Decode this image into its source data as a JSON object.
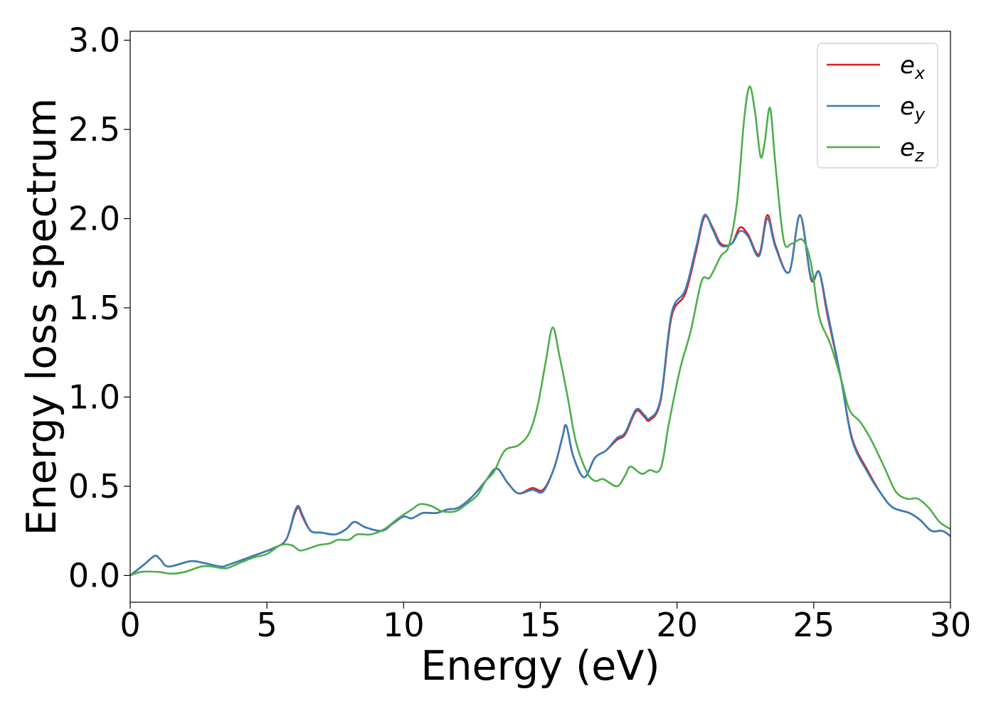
{
  "chart_data": {
    "type": "line",
    "xlabel": "Energy (eV)",
    "ylabel": "Energy loss spectrum",
    "xlim": [
      0,
      30
    ],
    "ylim": [
      -0.15,
      3.05
    ],
    "xticks": [
      0,
      5,
      10,
      15,
      20,
      25,
      30
    ],
    "xtick_labels": [
      "0",
      "5",
      "10",
      "15",
      "20",
      "25",
      "30"
    ],
    "yticks": [
      0.0,
      0.5,
      1.0,
      1.5,
      2.0,
      2.5,
      3.0
    ],
    "ytick_labels": [
      "0.0",
      "0.5",
      "1.0",
      "1.5",
      "2.0",
      "2.5",
      "3.0"
    ],
    "grid": false,
    "legend_position": "top-right",
    "series": [
      {
        "name": "e_x",
        "label_base": "e",
        "label_sub": "x",
        "color": "#e41a1c",
        "points": [
          [
            0,
            0.0
          ],
          [
            0.5,
            0.06
          ],
          [
            0.9,
            0.11
          ],
          [
            1.1,
            0.09
          ],
          [
            1.4,
            0.05
          ],
          [
            2.2,
            0.08
          ],
          [
            2.7,
            0.07
          ],
          [
            3.3,
            0.05
          ],
          [
            3.6,
            0.06
          ],
          [
            4.5,
            0.11
          ],
          [
            5.2,
            0.15
          ],
          [
            5.7,
            0.2
          ],
          [
            6.0,
            0.34
          ],
          [
            6.15,
            0.38
          ],
          [
            6.3,
            0.33
          ],
          [
            6.6,
            0.25
          ],
          [
            7.0,
            0.24
          ],
          [
            7.5,
            0.23
          ],
          [
            7.9,
            0.26
          ],
          [
            8.2,
            0.3
          ],
          [
            8.6,
            0.27
          ],
          [
            9.2,
            0.25
          ],
          [
            9.6,
            0.29
          ],
          [
            10.0,
            0.33
          ],
          [
            10.3,
            0.32
          ],
          [
            10.7,
            0.35
          ],
          [
            11.2,
            0.35
          ],
          [
            11.6,
            0.37
          ],
          [
            12.0,
            0.38
          ],
          [
            12.5,
            0.44
          ],
          [
            13.0,
            0.53
          ],
          [
            13.4,
            0.6
          ],
          [
            13.8,
            0.52
          ],
          [
            14.2,
            0.46
          ],
          [
            14.7,
            0.49
          ],
          [
            15.1,
            0.48
          ],
          [
            15.5,
            0.6
          ],
          [
            15.8,
            0.77
          ],
          [
            15.95,
            0.84
          ],
          [
            16.2,
            0.67
          ],
          [
            16.6,
            0.55
          ],
          [
            17.0,
            0.66
          ],
          [
            17.4,
            0.7
          ],
          [
            17.8,
            0.76
          ],
          [
            18.1,
            0.79
          ],
          [
            18.5,
            0.92
          ],
          [
            18.8,
            0.89
          ],
          [
            19.0,
            0.87
          ],
          [
            19.4,
            0.98
          ],
          [
            19.8,
            1.45
          ],
          [
            20.3,
            1.58
          ],
          [
            20.7,
            1.82
          ],
          [
            21.0,
            2.01
          ],
          [
            21.3,
            1.95
          ],
          [
            21.6,
            1.86
          ],
          [
            22.0,
            1.86
          ],
          [
            22.3,
            1.95
          ],
          [
            22.6,
            1.91
          ],
          [
            23.0,
            1.8
          ],
          [
            23.3,
            2.02
          ],
          [
            23.6,
            1.85
          ],
          [
            24.1,
            1.7
          ],
          [
            24.5,
            2.02
          ],
          [
            24.9,
            1.66
          ],
          [
            25.2,
            1.7
          ],
          [
            25.5,
            1.46
          ],
          [
            26.0,
            1.1
          ],
          [
            26.4,
            0.77
          ],
          [
            27.0,
            0.58
          ],
          [
            27.5,
            0.45
          ],
          [
            27.9,
            0.38
          ],
          [
            28.5,
            0.35
          ],
          [
            28.9,
            0.31
          ],
          [
            29.3,
            0.25
          ],
          [
            29.7,
            0.25
          ],
          [
            30.0,
            0.22
          ]
        ]
      },
      {
        "name": "e_y",
        "label_base": "e",
        "label_sub": "y",
        "color": "#377eb8",
        "points": [
          [
            0,
            0.0
          ],
          [
            0.5,
            0.06
          ],
          [
            0.9,
            0.11
          ],
          [
            1.1,
            0.09
          ],
          [
            1.4,
            0.05
          ],
          [
            2.2,
            0.08
          ],
          [
            2.7,
            0.07
          ],
          [
            3.3,
            0.05
          ],
          [
            3.6,
            0.06
          ],
          [
            4.5,
            0.11
          ],
          [
            5.2,
            0.15
          ],
          [
            5.7,
            0.2
          ],
          [
            6.0,
            0.35
          ],
          [
            6.15,
            0.39
          ],
          [
            6.3,
            0.34
          ],
          [
            6.6,
            0.25
          ],
          [
            7.0,
            0.24
          ],
          [
            7.5,
            0.23
          ],
          [
            7.9,
            0.26
          ],
          [
            8.2,
            0.3
          ],
          [
            8.6,
            0.27
          ],
          [
            9.2,
            0.25
          ],
          [
            9.6,
            0.29
          ],
          [
            10.0,
            0.33
          ],
          [
            10.3,
            0.32
          ],
          [
            10.7,
            0.35
          ],
          [
            11.2,
            0.35
          ],
          [
            11.6,
            0.37
          ],
          [
            12.0,
            0.38
          ],
          [
            12.5,
            0.44
          ],
          [
            13.0,
            0.53
          ],
          [
            13.4,
            0.6
          ],
          [
            13.8,
            0.52
          ],
          [
            14.2,
            0.46
          ],
          [
            14.7,
            0.48
          ],
          [
            15.1,
            0.47
          ],
          [
            15.5,
            0.6
          ],
          [
            15.8,
            0.77
          ],
          [
            15.95,
            0.84
          ],
          [
            16.2,
            0.67
          ],
          [
            16.6,
            0.55
          ],
          [
            17.0,
            0.66
          ],
          [
            17.4,
            0.7
          ],
          [
            17.8,
            0.77
          ],
          [
            18.1,
            0.8
          ],
          [
            18.5,
            0.93
          ],
          [
            18.8,
            0.9
          ],
          [
            19.0,
            0.88
          ],
          [
            19.4,
            0.99
          ],
          [
            19.8,
            1.47
          ],
          [
            20.3,
            1.6
          ],
          [
            20.7,
            1.84
          ],
          [
            21.0,
            2.02
          ],
          [
            21.3,
            1.94
          ],
          [
            21.6,
            1.85
          ],
          [
            22.0,
            1.86
          ],
          [
            22.3,
            1.93
          ],
          [
            22.6,
            1.9
          ],
          [
            23.0,
            1.79
          ],
          [
            23.3,
            2.0
          ],
          [
            23.6,
            1.84
          ],
          [
            24.1,
            1.7
          ],
          [
            24.5,
            2.02
          ],
          [
            24.9,
            1.67
          ],
          [
            25.2,
            1.7
          ],
          [
            25.5,
            1.48
          ],
          [
            26.0,
            1.1
          ],
          [
            26.4,
            0.76
          ],
          [
            27.0,
            0.57
          ],
          [
            27.5,
            0.45
          ],
          [
            27.9,
            0.38
          ],
          [
            28.5,
            0.35
          ],
          [
            28.9,
            0.31
          ],
          [
            29.3,
            0.25
          ],
          [
            29.7,
            0.25
          ],
          [
            30.0,
            0.22
          ]
        ]
      },
      {
        "name": "e_z",
        "label_base": "e",
        "label_sub": "z",
        "color": "#4daf4a",
        "points": [
          [
            0,
            0.0
          ],
          [
            0.4,
            0.02
          ],
          [
            1.0,
            0.02
          ],
          [
            1.5,
            0.01
          ],
          [
            2.0,
            0.02
          ],
          [
            2.6,
            0.05
          ],
          [
            3.0,
            0.05
          ],
          [
            3.5,
            0.04
          ],
          [
            4.0,
            0.07
          ],
          [
            4.5,
            0.1
          ],
          [
            5.0,
            0.12
          ],
          [
            5.5,
            0.17
          ],
          [
            5.9,
            0.17
          ],
          [
            6.2,
            0.14
          ],
          [
            6.5,
            0.15
          ],
          [
            6.9,
            0.17
          ],
          [
            7.3,
            0.18
          ],
          [
            7.6,
            0.2
          ],
          [
            8.0,
            0.2
          ],
          [
            8.3,
            0.23
          ],
          [
            8.8,
            0.23
          ],
          [
            9.3,
            0.26
          ],
          [
            9.8,
            0.32
          ],
          [
            10.3,
            0.37
          ],
          [
            10.6,
            0.4
          ],
          [
            11.0,
            0.39
          ],
          [
            11.4,
            0.36
          ],
          [
            11.9,
            0.36
          ],
          [
            12.3,
            0.4
          ],
          [
            12.7,
            0.45
          ],
          [
            13.0,
            0.53
          ],
          [
            13.3,
            0.58
          ],
          [
            13.7,
            0.7
          ],
          [
            14.2,
            0.73
          ],
          [
            14.6,
            0.8
          ],
          [
            14.9,
            0.95
          ],
          [
            15.2,
            1.2
          ],
          [
            15.45,
            1.39
          ],
          [
            15.7,
            1.23
          ],
          [
            16.0,
            1.0
          ],
          [
            16.3,
            0.75
          ],
          [
            16.7,
            0.58
          ],
          [
            17.0,
            0.53
          ],
          [
            17.3,
            0.54
          ],
          [
            17.8,
            0.5
          ],
          [
            18.1,
            0.56
          ],
          [
            18.3,
            0.61
          ],
          [
            18.7,
            0.57
          ],
          [
            19.0,
            0.59
          ],
          [
            19.4,
            0.6
          ],
          [
            19.7,
            0.85
          ],
          [
            20.1,
            1.15
          ],
          [
            20.5,
            1.37
          ],
          [
            20.9,
            1.65
          ],
          [
            21.2,
            1.67
          ],
          [
            21.6,
            1.79
          ],
          [
            21.9,
            1.85
          ],
          [
            22.2,
            2.1
          ],
          [
            22.45,
            2.55
          ],
          [
            22.65,
            2.74
          ],
          [
            22.85,
            2.6
          ],
          [
            23.05,
            2.35
          ],
          [
            23.2,
            2.42
          ],
          [
            23.4,
            2.62
          ],
          [
            23.6,
            2.3
          ],
          [
            23.9,
            1.88
          ],
          [
            24.2,
            1.86
          ],
          [
            24.6,
            1.88
          ],
          [
            24.9,
            1.75
          ],
          [
            25.2,
            1.45
          ],
          [
            25.6,
            1.3
          ],
          [
            26.0,
            1.1
          ],
          [
            26.3,
            0.93
          ],
          [
            26.7,
            0.86
          ],
          [
            27.1,
            0.76
          ],
          [
            27.6,
            0.6
          ],
          [
            28.0,
            0.47
          ],
          [
            28.4,
            0.43
          ],
          [
            28.8,
            0.43
          ],
          [
            29.2,
            0.38
          ],
          [
            29.6,
            0.3
          ],
          [
            30.0,
            0.26
          ]
        ]
      }
    ]
  }
}
